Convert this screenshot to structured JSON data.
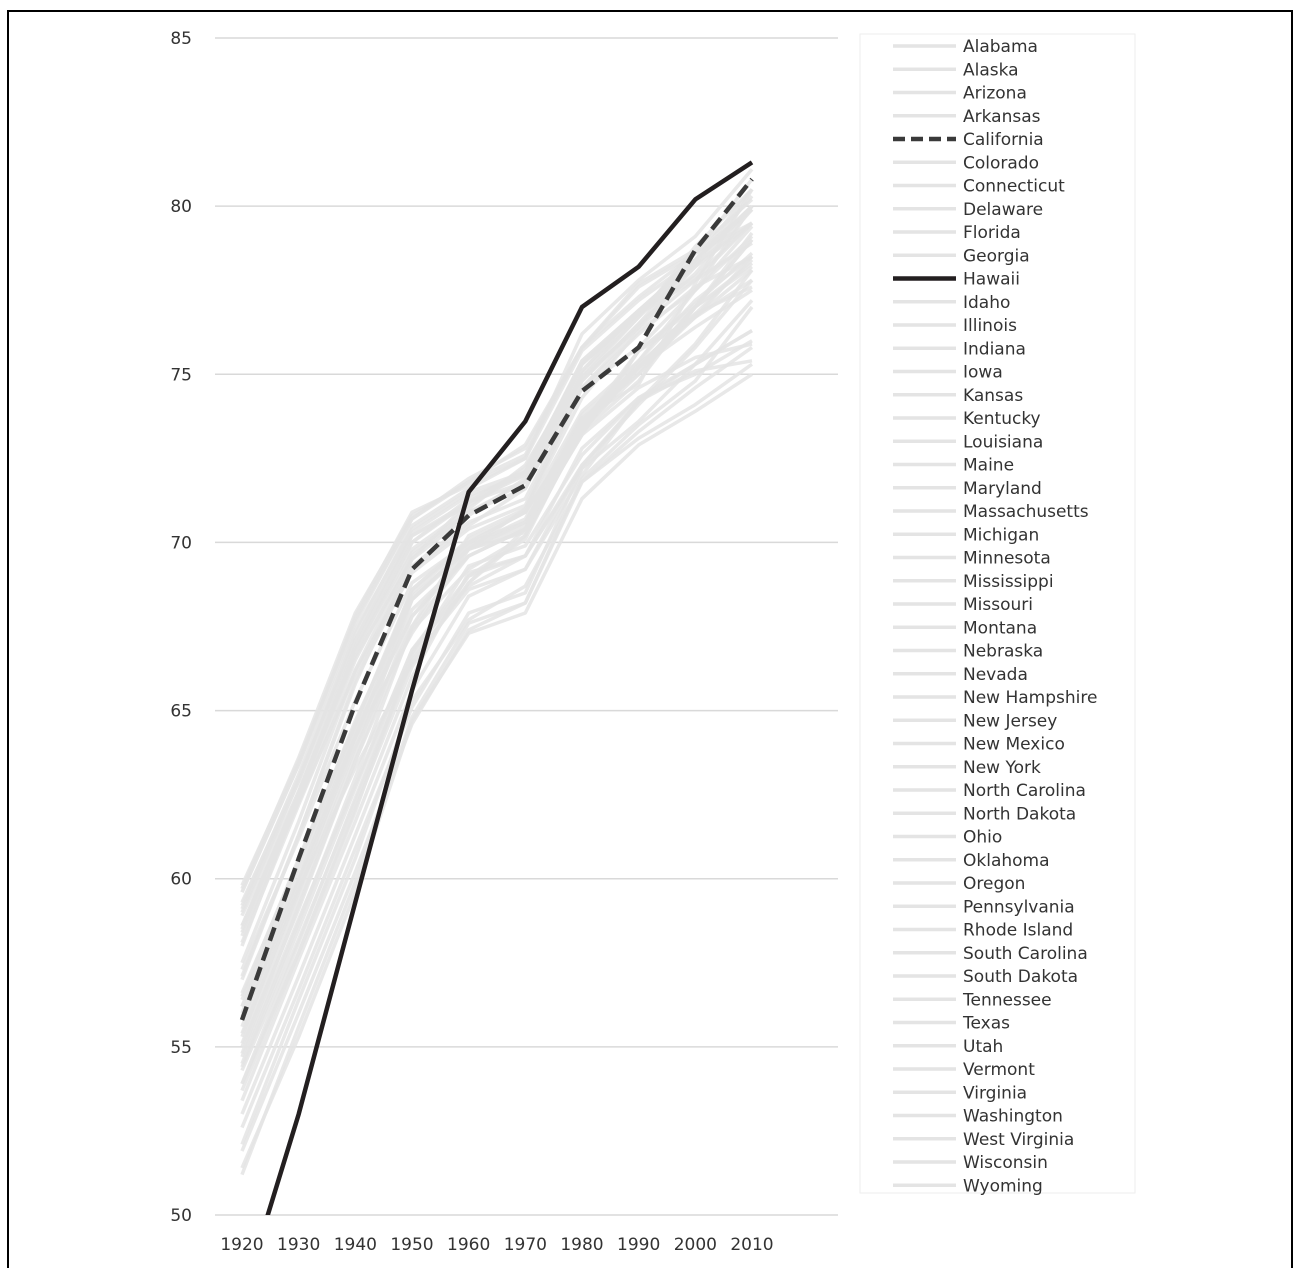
{
  "chart_data": {
    "type": "line",
    "title": "",
    "xlabel": "",
    "ylabel": "",
    "x": [
      1920,
      1930,
      1940,
      1950,
      1960,
      1970,
      1980,
      1990,
      2000,
      2010
    ],
    "xlim": [
      1920,
      2010
    ],
    "ylim": [
      50,
      85
    ],
    "y_ticks": [
      50,
      55,
      60,
      65,
      70,
      75,
      80,
      85
    ],
    "grid": "horizontal",
    "legend_position": "right",
    "colors": {
      "background_series": "#e4e4e4",
      "highlight": "#231f20",
      "california": "#3a3a3a",
      "grid": "#d9d9d9"
    },
    "series": [
      {
        "name": "Alabama",
        "values": [
          51.2,
          55.6,
          59.9,
          64.8,
          67.6,
          68.2,
          71.8,
          73.1,
          74.1,
          75.3
        ],
        "style": "background"
      },
      {
        "name": "Alaska",
        "values": [
          55.8,
          59.7,
          63.3,
          66.4,
          68.8,
          70.4,
          73.2,
          75.7,
          77.1,
          78.6
        ],
        "style": "background"
      },
      {
        "name": "Arizona",
        "values": [
          56.0,
          60.3,
          64.2,
          67.3,
          69.8,
          71.0,
          74.3,
          76.3,
          77.5,
          79.1
        ],
        "style": "background"
      },
      {
        "name": "Arkansas",
        "values": [
          53.4,
          57.6,
          61.7,
          66.0,
          69.1,
          69.6,
          72.8,
          74.3,
          75.0,
          76.0
        ],
        "style": "background"
      },
      {
        "name": "California",
        "values": [
          55.8,
          60.6,
          65.2,
          69.2,
          70.8,
          71.7,
          74.5,
          75.8,
          78.7,
          80.8
        ],
        "style": "dashed"
      },
      {
        "name": "Colorado",
        "values": [
          57.0,
          61.3,
          65.8,
          69.5,
          71.2,
          71.8,
          75.3,
          76.8,
          78.2,
          80.0
        ],
        "style": "background"
      },
      {
        "name": "Connecticut",
        "values": [
          58.0,
          62.4,
          66.8,
          69.8,
          71.0,
          72.3,
          75.1,
          76.8,
          78.6,
          80.8
        ],
        "style": "background"
      },
      {
        "name": "Delaware",
        "values": [
          56.2,
          60.5,
          64.4,
          67.8,
          69.6,
          70.4,
          73.4,
          75.0,
          76.8,
          78.4
        ],
        "style": "background"
      },
      {
        "name": "Florida",
        "values": [
          55.4,
          59.6,
          63.9,
          67.5,
          70.2,
          71.0,
          74.6,
          75.8,
          77.5,
          79.4
        ],
        "style": "background"
      },
      {
        "name": "Georgia",
        "values": [
          52.6,
          56.7,
          60.9,
          65.1,
          67.9,
          68.5,
          72.2,
          73.6,
          75.3,
          77.2
        ],
        "style": "background"
      },
      {
        "name": "Hawaii",
        "values": [
          47.5,
          53.0,
          59.3,
          65.6,
          71.5,
          73.6,
          77.0,
          78.2,
          80.2,
          81.3
        ],
        "style": "solid"
      },
      {
        "name": "Idaho",
        "values": [
          59.3,
          63.0,
          67.1,
          70.3,
          71.4,
          72.0,
          75.4,
          76.9,
          77.9,
          79.5
        ],
        "style": "background"
      },
      {
        "name": "Illinois",
        "values": [
          55.3,
          59.7,
          64.2,
          68.4,
          69.8,
          70.3,
          73.3,
          75.2,
          77.0,
          79.0
        ],
        "style": "background"
      },
      {
        "name": "Indiana",
        "values": [
          56.5,
          60.6,
          64.6,
          68.6,
          70.1,
          70.9,
          73.5,
          75.3,
          76.8,
          77.6
        ],
        "style": "background"
      },
      {
        "name": "Iowa",
        "values": [
          59.7,
          63.6,
          67.9,
          70.8,
          71.8,
          72.6,
          75.8,
          77.3,
          78.6,
          79.9
        ],
        "style": "background"
      },
      {
        "name": "Kansas",
        "values": [
          58.9,
          62.6,
          66.9,
          70.0,
          71.3,
          72.1,
          75.3,
          76.8,
          77.8,
          78.9
        ],
        "style": "background"
      },
      {
        "name": "Kentucky",
        "values": [
          54.7,
          58.8,
          62.8,
          66.8,
          69.0,
          69.6,
          72.3,
          74.2,
          75.3,
          76.3
        ],
        "style": "background"
      },
      {
        "name": "Louisiana",
        "values": [
          52.1,
          56.4,
          60.6,
          65.3,
          67.7,
          68.7,
          71.8,
          73.3,
          74.6,
          75.8
        ],
        "style": "background"
      },
      {
        "name": "Maine",
        "values": [
          58.1,
          62.2,
          66.2,
          69.1,
          70.4,
          71.1,
          74.6,
          76.4,
          78.2,
          79.5
        ],
        "style": "background"
      },
      {
        "name": "Maryland",
        "values": [
          54.8,
          59.2,
          63.5,
          67.4,
          69.2,
          70.2,
          73.3,
          74.8,
          77.0,
          79.2
        ],
        "style": "background"
      },
      {
        "name": "Massachusetts",
        "values": [
          57.5,
          61.7,
          66.2,
          69.6,
          70.9,
          71.8,
          75.0,
          76.7,
          78.8,
          80.5
        ],
        "style": "background"
      },
      {
        "name": "Michigan",
        "values": [
          56.4,
          60.5,
          64.6,
          68.5,
          70.0,
          70.6,
          73.7,
          75.0,
          77.0,
          78.2
        ],
        "style": "background"
      },
      {
        "name": "Minnesota",
        "values": [
          59.6,
          63.4,
          67.8,
          70.9,
          71.7,
          72.5,
          76.2,
          77.8,
          79.1,
          81.1
        ],
        "style": "background"
      },
      {
        "name": "Mississippi",
        "values": [
          51.4,
          55.3,
          59.6,
          64.7,
          67.3,
          67.9,
          71.3,
          72.9,
          73.9,
          75.0
        ],
        "style": "background"
      },
      {
        "name": "Missouri",
        "values": [
          56.2,
          60.0,
          64.2,
          68.3,
          69.9,
          70.7,
          73.8,
          75.2,
          76.4,
          77.5
        ],
        "style": "background"
      },
      {
        "name": "Montana",
        "values": [
          58.4,
          62.3,
          66.1,
          69.3,
          70.6,
          71.3,
          74.6,
          76.2,
          77.6,
          78.5
        ],
        "style": "background"
      },
      {
        "name": "Nebraska",
        "values": [
          59.1,
          62.9,
          67.3,
          70.5,
          71.6,
          72.5,
          75.7,
          77.2,
          78.4,
          79.9
        ],
        "style": "background"
      },
      {
        "name": "Nevada",
        "values": [
          54.4,
          58.5,
          62.7,
          66.8,
          68.7,
          69.6,
          72.2,
          74.2,
          75.9,
          78.1
        ],
        "style": "background"
      },
      {
        "name": "New Hampshire",
        "values": [
          58.6,
          62.5,
          66.6,
          69.5,
          70.8,
          71.9,
          74.9,
          76.7,
          78.3,
          80.3
        ],
        "style": "background"
      },
      {
        "name": "New Jersey",
        "values": [
          55.6,
          60.0,
          64.4,
          68.6,
          70.0,
          70.9,
          73.9,
          75.4,
          77.5,
          80.0
        ],
        "style": "background"
      },
      {
        "name": "New Mexico",
        "values": [
          53.9,
          57.8,
          62.1,
          66.3,
          68.8,
          70.2,
          73.3,
          75.7,
          76.7,
          78.1
        ],
        "style": "background"
      },
      {
        "name": "New York",
        "values": [
          55.1,
          59.4,
          63.7,
          68.3,
          69.8,
          70.6,
          73.7,
          74.7,
          77.7,
          80.5
        ],
        "style": "background"
      },
      {
        "name": "North Carolina",
        "values": [
          53.0,
          57.1,
          61.3,
          65.6,
          68.4,
          69.2,
          72.3,
          74.1,
          75.8,
          77.8
        ],
        "style": "background"
      },
      {
        "name": "North Dakota",
        "values": [
          59.8,
          63.5,
          67.7,
          70.7,
          71.9,
          72.8,
          75.8,
          77.6,
          78.6,
          79.5
        ],
        "style": "background"
      },
      {
        "name": "Ohio",
        "values": [
          56.6,
          60.5,
          64.7,
          68.3,
          69.9,
          70.5,
          73.5,
          75.3,
          76.7,
          77.8
        ],
        "style": "background"
      },
      {
        "name": "Oklahoma",
        "values": [
          55.0,
          59.1,
          63.5,
          67.8,
          69.8,
          70.4,
          73.2,
          74.6,
          75.5,
          75.9
        ],
        "style": "background"
      },
      {
        "name": "Oregon",
        "values": [
          59.0,
          62.9,
          67.1,
          70.2,
          71.1,
          72.1,
          74.9,
          76.4,
          77.8,
          79.5
        ],
        "style": "background"
      },
      {
        "name": "Pennsylvania",
        "values": [
          55.9,
          59.9,
          64.0,
          68.0,
          69.6,
          70.4,
          73.6,
          75.4,
          77.2,
          78.5
        ],
        "style": "background"
      },
      {
        "name": "Rhode Island",
        "values": [
          57.1,
          61.3,
          65.9,
          69.2,
          70.5,
          71.6,
          74.8,
          76.5,
          78.0,
          79.9
        ],
        "style": "background"
      },
      {
        "name": "South Carolina",
        "values": [
          51.9,
          56.0,
          60.2,
          64.6,
          67.4,
          68.2,
          71.9,
          73.5,
          74.8,
          77.0
        ],
        "style": "background"
      },
      {
        "name": "South Dakota",
        "values": [
          59.2,
          63.1,
          67.4,
          70.4,
          71.5,
          72.1,
          75.4,
          76.9,
          78.3,
          79.5
        ],
        "style": "background"
      },
      {
        "name": "Tennessee",
        "values": [
          53.7,
          57.8,
          62.0,
          66.7,
          69.3,
          69.9,
          72.6,
          74.3,
          75.3,
          76.3
        ],
        "style": "background"
      },
      {
        "name": "Texas",
        "values": [
          54.5,
          58.7,
          63.0,
          67.5,
          69.6,
          70.4,
          73.6,
          75.1,
          76.7,
          78.5
        ],
        "style": "background"
      },
      {
        "name": "Utah",
        "values": [
          59.6,
          63.4,
          67.6,
          70.7,
          71.8,
          72.9,
          75.8,
          77.7,
          78.7,
          80.2
        ],
        "style": "background"
      },
      {
        "name": "Vermont",
        "values": [
          58.3,
          62.3,
          66.5,
          69.7,
          70.9,
          71.6,
          74.8,
          76.5,
          78.4,
          80.5
        ],
        "style": "background"
      },
      {
        "name": "Virginia",
        "values": [
          53.9,
          58.1,
          62.4,
          66.6,
          69.0,
          70.1,
          73.4,
          75.2,
          77.0,
          79.0
        ],
        "style": "background"
      },
      {
        "name": "Washington",
        "values": [
          58.5,
          62.6,
          66.7,
          70.0,
          71.2,
          72.0,
          75.1,
          76.9,
          78.4,
          80.0
        ],
        "style": "background"
      },
      {
        "name": "West Virginia",
        "values": [
          54.3,
          58.2,
          62.3,
          66.5,
          68.6,
          69.2,
          72.0,
          74.2,
          75.1,
          75.4
        ],
        "style": "background"
      },
      {
        "name": "Wisconsin",
        "values": [
          58.6,
          62.5,
          66.9,
          70.2,
          71.2,
          72.2,
          75.3,
          76.9,
          78.4,
          80.0
        ],
        "style": "background"
      },
      {
        "name": "Wyoming",
        "values": [
          57.3,
          61.2,
          65.3,
          68.8,
          70.0,
          70.9,
          73.5,
          75.7,
          77.0,
          78.3
        ],
        "style": "background"
      }
    ]
  }
}
